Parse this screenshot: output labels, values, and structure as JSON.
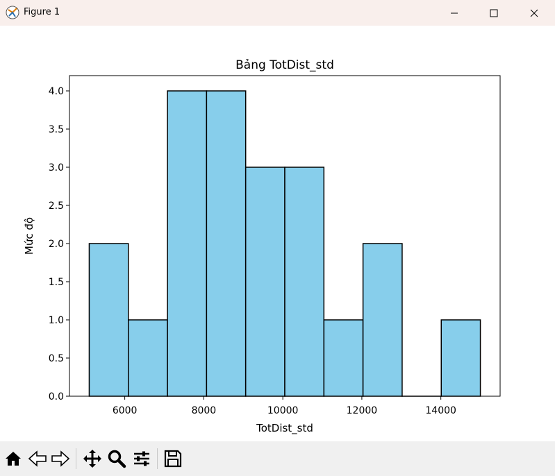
{
  "window": {
    "title": "Figure 1",
    "minimize_icon": "minimize-icon",
    "maximize_icon": "maximize-icon",
    "close_icon": "close-icon"
  },
  "toolbar": {
    "buttons": [
      "home-icon",
      "back-arrow-icon",
      "forward-arrow-icon",
      "pan-icon",
      "zoom-icon",
      "configure-subplots-icon",
      "save-icon"
    ]
  },
  "chart_data": {
    "type": "bar",
    "title": "Bảng TotDist_std",
    "xlabel": "TotDist_std",
    "ylabel": "Mức độ",
    "bin_edges": [
      5100,
      6090,
      7080,
      8070,
      9060,
      10050,
      11040,
      12030,
      13020,
      14010,
      15000
    ],
    "values": [
      2,
      1,
      4,
      4,
      3,
      3,
      1,
      2,
      0,
      1
    ],
    "xlim": [
      4600,
      15500
    ],
    "ylim": [
      0,
      4.2
    ],
    "xticks": [
      "6000",
      "8000",
      "10000",
      "12000",
      "14000"
    ],
    "xtick_values": [
      6000,
      8000,
      10000,
      12000,
      14000
    ],
    "yticks": [
      "0.0",
      "0.5",
      "1.0",
      "1.5",
      "2.0",
      "2.5",
      "3.0",
      "3.5",
      "4.0"
    ],
    "ytick_values": [
      0,
      0.5,
      1.0,
      1.5,
      2.0,
      2.5,
      3.0,
      3.5,
      4.0
    ],
    "bar_color": "#87ceeb",
    "edge_color": "#000000",
    "grid": false
  }
}
